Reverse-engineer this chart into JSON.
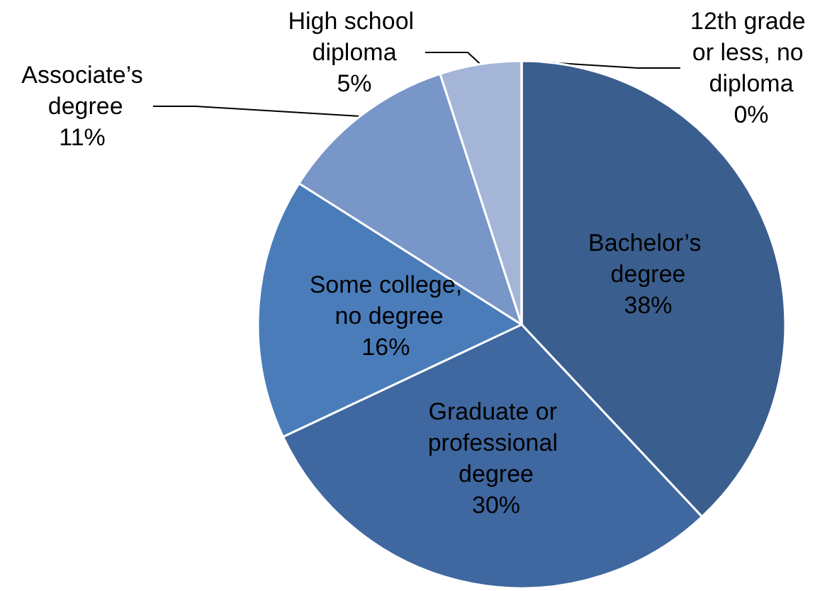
{
  "chart_data": {
    "type": "pie",
    "categories": [
      "Bachelor’s degree",
      "Graduate or professional degree",
      "Some college, no degree",
      "Associate’s degree",
      "High school diploma",
      "12th grade or less, no diploma"
    ],
    "values": [
      38,
      30,
      16,
      11,
      5,
      0
    ],
    "colors": [
      "#3a5e8e",
      "#3f67a0",
      "#4a7cba",
      "#7896c8",
      "#a4b5d8",
      "#cdd6ea"
    ],
    "value_labels": [
      "38%",
      "30%",
      "16%",
      "11%",
      "5%",
      "0%"
    ],
    "legend": false
  }
}
